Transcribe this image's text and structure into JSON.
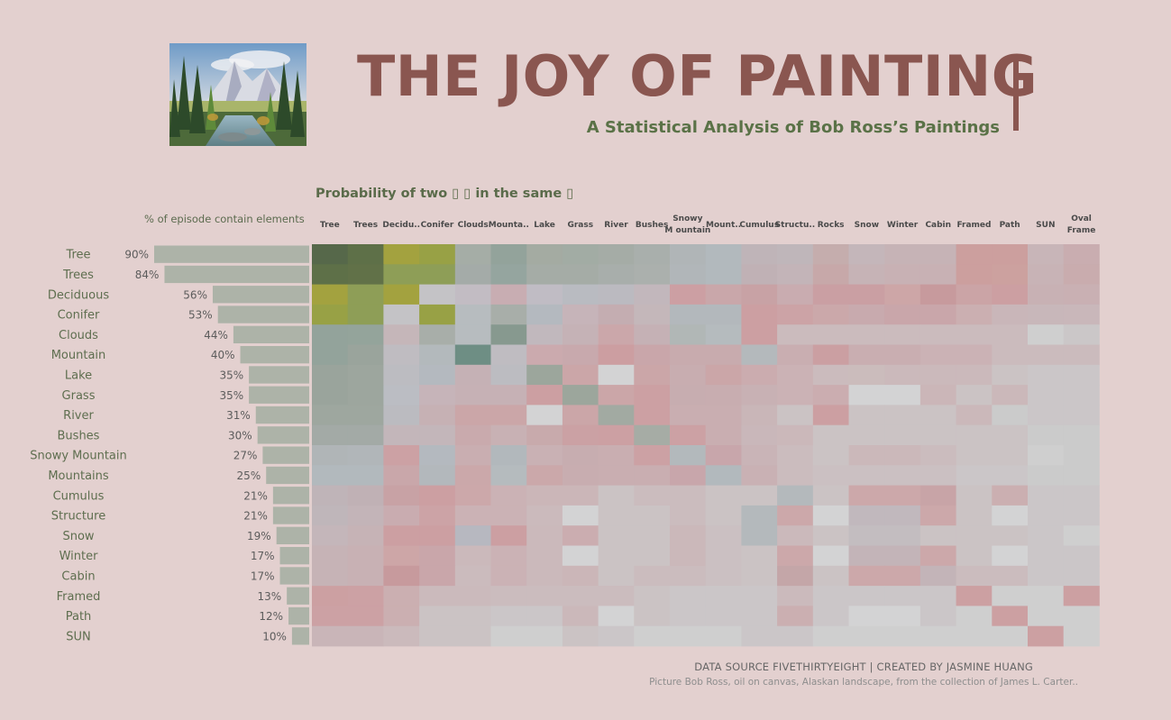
{
  "title": "THE JOY OF PAINTING",
  "subtitle": "A Statistical Analysis of Bob Ross’s Paintings",
  "matrix_title": "Probability of two ▯ ▯  in the same ▯",
  "bar_header": "% of episode contain elements",
  "footer": {
    "credit": "DATA SOURCE FIVETHIRTYEIGHT | CREATED BY JASMINE HUANG",
    "picture_caption": "Picture Bob Ross, oil on canvas, Alaskan landscape, from the collection of James L. Carter.."
  },
  "colors": {
    "background": "#e3d0cf",
    "title": "#8a5650",
    "subtitle": "#5a7247",
    "bar": "#adb3a8",
    "high_green": "#56684a",
    "olive": "#a3a23f",
    "teal": "#6e8e84",
    "pink": "#cc9f9e",
    "light_grey": "#cfcfcf"
  },
  "chart_data": [
    {
      "type": "bar",
      "orientation": "horizontal",
      "title": "% of episode contain elements",
      "categories": [
        "Tree",
        "Trees",
        "Deciduous",
        "Conifer",
        "Clouds",
        "Mountain",
        "Lake",
        "Grass",
        "River",
        "Bushes",
        "Snowy Mountain",
        "Mountains",
        "Cumulus",
        "Structure",
        "Snow",
        "Winter",
        "Cabin",
        "Framed",
        "Path",
        "SUN"
      ],
      "values": [
        90,
        84,
        56,
        53,
        44,
        40,
        35,
        35,
        31,
        30,
        27,
        25,
        21,
        21,
        19,
        17,
        17,
        13,
        12,
        10
      ],
      "value_labels": [
        "90%",
        "84%",
        "56%",
        "53%",
        "44%",
        "40%",
        "35%",
        "35%",
        "31%",
        "30%",
        "27%",
        "25%",
        "21%",
        "21%",
        "19%",
        "17%",
        "17%",
        "13%",
        "12%",
        "10%"
      ],
      "xlim": [
        0,
        100
      ]
    },
    {
      "type": "heatmap",
      "title": "Probability of two ▯ ▯  in the same ▯",
      "rows": [
        "Tree",
        "Trees",
        "Deciduous",
        "Conifer",
        "Clouds",
        "Mountain",
        "Lake",
        "Grass",
        "River",
        "Bushes",
        "Snowy Mountain",
        "Mountains",
        "Cumulus",
        "Structure",
        "Snow",
        "Winter",
        "Cabin",
        "Framed",
        "Path",
        "SUN"
      ],
      "columns": [
        "Tree",
        "Trees",
        "Decidu..",
        "Conifer",
        "Clouds",
        "Mounta..",
        "Lake",
        "Grass",
        "River",
        "Bushes",
        "Snowy M ountain",
        "Mount..",
        "Cumulus",
        "Structu..",
        "Rocks",
        "Snow",
        "Winter",
        "Cabin",
        "Framed",
        "Path",
        "SUN",
        "Oval Frame"
      ],
      "legend": "none",
      "cells": [
        [
          "#56684a",
          "#5e7048",
          "#a3a23f",
          "#98a145",
          "#a5ada6",
          "#93a39b",
          "#a4aba2",
          "#a2aca4",
          "#a5aca6",
          "#a9afac",
          "#b0b5b7",
          "#b2b9bd",
          "#bfb4b8",
          "#bfb6ba",
          "#c5adad",
          "#c4b6ba",
          "#c6b3b6",
          "#c6b3b6",
          "#cc9f9e",
          "#cc9f9e",
          "#c8b5b8",
          "#c9adb0"
        ],
        [
          "#5e7048",
          "#617148",
          "#8e9e57",
          "#8e9e57",
          "#a4aba8",
          "#95a59f",
          "#a5aca6",
          "#a5aca6",
          "#a8aeab",
          "#abb0ad",
          "#b1b6b9",
          "#b2b9bd",
          "#c0b1b5",
          "#c3b4b8",
          "#c7a8a9",
          "#c6b3b6",
          "#c8b1b4",
          "#c8b1b4",
          "#cc9f9e",
          "#cca19f",
          "#c8b3b6",
          "#c9acae"
        ],
        [
          "#a3a23f",
          "#8e9e57",
          "#a3a23f",
          "#c4c3c6",
          "#c2bcc3",
          "#c8adb2",
          "#c0bcc4",
          "#b9bbc1",
          "#bbbac0",
          "#c2b7bc",
          "#cc9fa3",
          "#c9a7aa",
          "#c8a2a5",
          "#c9acb0",
          "#ca9fa3",
          "#ca9fa3",
          "#cda6a7",
          "#c79a9d",
          "#cba4a6",
          "#cc9fa2",
          "#c8b1b4",
          "#c9b0b3"
        ],
        [
          "#98a145",
          "#8e9e57",
          "#c4c3c6",
          "#98a145",
          "#b7bcbf",
          "#a8aea9",
          "#b4b9bf",
          "#c6b4b9",
          "#c4adb1",
          "#c4b7ba",
          "#b3b8bc",
          "#b3b8bc",
          "#cc9fa2",
          "#cca3a6",
          "#cba8aa",
          "#c8aaae",
          "#c9a6aa",
          "#c9a6aa",
          "#cbafb1",
          "#c9b6b9",
          "#c8b7ba",
          "#c9b7ba"
        ],
        [
          "#93a39b",
          "#94a49b",
          "#c5b6b9",
          "#a8aea9",
          "#b7bcbf",
          "#87998f",
          "#c1b8bd",
          "#c5b2b6",
          "#cba7aa",
          "#c5b1b5",
          "#b1b7b6",
          "#b5bbbe",
          "#cc9fa2",
          "#cbbbbd",
          "#cbbbbd",
          "#cbbbbd",
          "#cbbbbd",
          "#cbbbbd",
          "#cbbbbd",
          "#cbbbbd",
          "#cfcfcf",
          "#cbc7c8"
        ],
        [
          "#93a39b",
          "#9aa49c",
          "#bfbcc1",
          "#b3b9bc",
          "#6e8e84",
          "#bfbcc1",
          "#cbaaae",
          "#c8a9ad",
          "#cc9ea1",
          "#c9a6aa",
          "#c8abae",
          "#c8abae",
          "#b4b9bc",
          "#c9aeb1",
          "#cb9fa2",
          "#c9aeb1",
          "#c9aeb1",
          "#cbb2b5",
          "#cbb2b5",
          "#cbbbbd",
          "#cbbbbd",
          "#cbbbbd"
        ],
        [
          "#9aa49c",
          "#9da69e",
          "#bcbcc1",
          "#b4b9bf",
          "#c5b1b5",
          "#bcbcc1",
          "#9ca69c",
          "#cba6a8",
          "#d3d3d4",
          "#cba6a8",
          "#c8adb0",
          "#cba6a8",
          "#cbacaf",
          "#cbb2b5",
          "#cbbbbd",
          "#cbbcbc",
          "#cbb9bb",
          "#cbb9bb",
          "#cbb9bb",
          "#cbc3c4",
          "#cbc6c8",
          "#cbc6c8"
        ],
        [
          "#9aa49c",
          "#9da69e",
          "#bbbdc3",
          "#c6b4b9",
          "#c6b1b5",
          "#c6b1b5",
          "#cc9fa2",
          "#9ca69c",
          "#cba6a8",
          "#cca0a3",
          "#c7adb0",
          "#c8adb0",
          "#c8b1b4",
          "#cbb2b5",
          "#cbadb0",
          "#d3d3d4",
          "#d3d3d4",
          "#cbb6b8",
          "#cbc3c4",
          "#cbb8ba",
          "#cbc6c8",
          "#cbc6c8"
        ],
        [
          "#9ea79f",
          "#9ea79f",
          "#bbbbc0",
          "#c6b1b4",
          "#cba6a8",
          "#cba6a8",
          "#d3d3d4",
          "#cba6a8",
          "#a2aaa2",
          "#cca0a3",
          "#c9aeb1",
          "#c9aeb1",
          "#c9b6b8",
          "#cbc3c4",
          "#cc9fa2",
          "#cbc3c4",
          "#cbc3c4",
          "#cbc3c4",
          "#cbb8ba",
          "#cbcbcb",
          "#cbc6c8",
          "#cbc6c8"
        ],
        [
          "#a3aaa6",
          "#a3aaa6",
          "#c3b6ba",
          "#c3b6ba",
          "#c9aaad",
          "#c8b1b4",
          "#c8aaac",
          "#cba1a4",
          "#cca0a3",
          "#a6aca5",
          "#cca1a4",
          "#c9aeb1",
          "#c9b7ba",
          "#cbb8ba",
          "#cbc3c4",
          "#cbc3c4",
          "#cbc3c4",
          "#cbc3c4",
          "#cbc3c4",
          "#cbc3c4",
          "#cbcbcb",
          "#cbcbcb"
        ],
        [
          "#b0b5b7",
          "#b1b6b9",
          "#cca1a4",
          "#b4b9bf",
          "#c9aeb1",
          "#b2b8bc",
          "#c9b1b4",
          "#c7adb0",
          "#c9aeb1",
          "#cca1a4",
          "#b3b9bc",
          "#c8a6ab",
          "#c9b4b7",
          "#cbbcbe",
          "#cbc3c4",
          "#cbb8ba",
          "#cbb8ba",
          "#cbbcbe",
          "#cbc3c4",
          "#cbc3c4",
          "#cfcfcf",
          "#cbcbcb"
        ],
        [
          "#b2b9bd",
          "#b2b9bd",
          "#c9a7aa",
          "#b3b8bc",
          "#cba8aa",
          "#b5bbbe",
          "#cba8aa",
          "#c8adb0",
          "#c9aeb1",
          "#c9aeb1",
          "#c8a6ab",
          "#b2b9bd",
          "#c9b1b4",
          "#cbbcbe",
          "#cbc0c2",
          "#cbc0c2",
          "#cbc0c2",
          "#cbc0c2",
          "#cbc6c8",
          "#cbc6c8",
          "#cbcbcb",
          "#cbcbcb"
        ],
        [
          "#bfb4b8",
          "#c0b1b5",
          "#c8a2a5",
          "#cc9fa2",
          "#cca8aa",
          "#cbb2b5",
          "#cbb6b8",
          "#cbb6b8",
          "#cbc3c4",
          "#cbbcbe",
          "#cbbcbe",
          "#cbc3c4",
          "#cbc3c4",
          "#b4b9bc",
          "#cbc3c4",
          "#cca8aa",
          "#cca8aa",
          "#c8a4a7",
          "#cbc3c4",
          "#cbafb1",
          "#cbc6c8",
          "#cbc6c8"
        ],
        [
          "#bfb6ba",
          "#c3b4b8",
          "#c9acb0",
          "#cca3a6",
          "#cbb2b5",
          "#cbb2b5",
          "#cbbabc",
          "#d3d3d4",
          "#cbc3c4",
          "#cbc3c4",
          "#cbbcbe",
          "#cbc3c4",
          "#b4b9bc",
          "#cca8aa",
          "#d3d3d4",
          "#c1b8bd",
          "#c1b8bd",
          "#cca8aa",
          "#cbc3c4",
          "#d3d3d4",
          "#cbc6c8",
          "#cbc6c8"
        ],
        [
          "#c4b6ba",
          "#c6b3b6",
          "#cc9fa2",
          "#cc9fa2",
          "#b7b8c0",
          "#cc9fa2",
          "#cbb9bb",
          "#cbadb0",
          "#cbc3c4",
          "#cbc3c4",
          "#cbb8ba",
          "#cbc0c2",
          "#b4b9bc",
          "#cbb9bb",
          "#cbc3c4",
          "#c3bdc0",
          "#c3bdc0",
          "#cbc3c4",
          "#cbc3c4",
          "#cbc3c4",
          "#cbc6c8",
          "#cfcfcf"
        ],
        [
          "#c6b3b6",
          "#c8b1b4",
          "#cda6a7",
          "#c9a6aa",
          "#cbb9bb",
          "#cbb2b5",
          "#cbb9bb",
          "#d3d3d4",
          "#cbc3c4",
          "#cbc3c4",
          "#cbb8ba",
          "#cbc0c2",
          "#cbc3c4",
          "#cca8aa",
          "#d3d3d4",
          "#c3b4b8",
          "#c3b4b8",
          "#cca8aa",
          "#cbc3c4",
          "#d3d3d4",
          "#cbc6c8",
          "#cbc6c8"
        ],
        [
          "#c6b3b6",
          "#c8b1b4",
          "#c79a9d",
          "#c9a6aa",
          "#cbbbbd",
          "#cbb2b5",
          "#cbb9bb",
          "#cbb6b8",
          "#cbc3c4",
          "#cbbcbe",
          "#cbbcbe",
          "#cbc0c2",
          "#cbc3c4",
          "#c4a6a8",
          "#cbc3c4",
          "#cca8aa",
          "#cca8aa",
          "#c3b4b8",
          "#cbbcbe",
          "#cbbcbe",
          "#cbc6c8",
          "#cbc6c8"
        ],
        [
          "#cca0a2",
          "#cca1a4",
          "#cbafb1",
          "#cbbabc",
          "#cbbabc",
          "#cbbcbe",
          "#cbbcbe",
          "#cbbcbe",
          "#cbbcbe",
          "#cbc3c4",
          "#cbc6c8",
          "#cbc6c8",
          "#cbc6c8",
          "#cbbabc",
          "#cbc6c8",
          "#cbc6c8",
          "#cbc6c8",
          "#cbc6c8",
          "#cca0a2",
          "#cfcfcf",
          "#cfcfcf",
          "#cca0a2"
        ],
        [
          "#cca1a4",
          "#cca1a4",
          "#cbafb1",
          "#cbc3c4",
          "#cbc3c4",
          "#cbc6c8",
          "#cbc6c8",
          "#cbb8ba",
          "#d3d3d4",
          "#cbc3c4",
          "#cbc6c8",
          "#cbc6c8",
          "#cbc6c8",
          "#cbafb1",
          "#cbc6c8",
          "#d3d3d4",
          "#d3d3d4",
          "#cbc6c8",
          "#cfcfcf",
          "#cca0a2",
          "#cfcfcf",
          "#cfcfcf"
        ],
        [
          "#c9b5b8",
          "#c9b5b8",
          "#cbbabc",
          "#cbc3c4",
          "#cbc3c4",
          "#cfcfcf",
          "#cfcfcf",
          "#cbc3c4",
          "#cbc6c8",
          "#cfcfcf",
          "#cfcfcf",
          "#cfcfcf",
          "#cbc6c8",
          "#cbc6c8",
          "#cfcfcf",
          "#cfcfcf",
          "#cfcfcf",
          "#cfcfcf",
          "#cfcfcf",
          "#cfcfcf",
          "#cca0a2",
          "#cfcfcf"
        ]
      ]
    }
  ]
}
